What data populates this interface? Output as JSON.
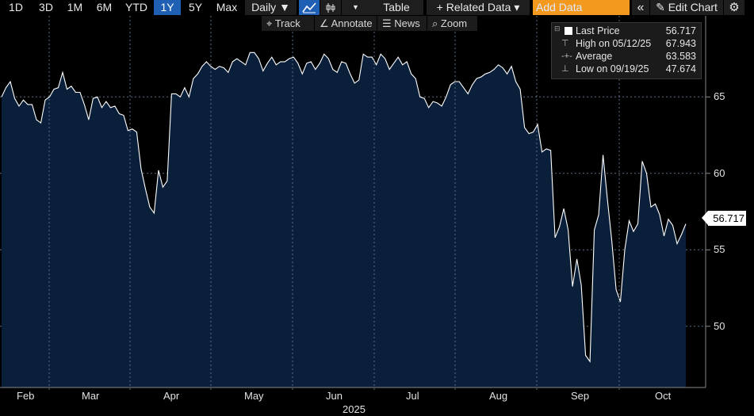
{
  "toolbar": {
    "ranges": [
      "1D",
      "3D",
      "1M",
      "6M",
      "YTD",
      "1Y",
      "5Y",
      "Max"
    ],
    "active_range": "1Y",
    "frequency": "Daily ▼",
    "table_label": "Table",
    "related_label": "+ Related Data ▾",
    "add_data_placeholder": "Add Data",
    "collapse_icon": "«",
    "edit_label": "Edit Chart",
    "settings_icon": "⚙"
  },
  "subbar": {
    "track": "Track",
    "annotate": "Annotate",
    "news": "News",
    "zoom": "Zoom"
  },
  "legend": {
    "last_label": "Last Price",
    "last_value": "56.717",
    "high_label": "High on 05/12/25",
    "high_value": "67.943",
    "avg_label": "Average",
    "avg_value": "63.583",
    "low_label": "Low on 09/19/25",
    "low_value": "47.674"
  },
  "price_tag": "56.717",
  "colors": {
    "area_fill": "#0a1f3a",
    "line": "#ffffff",
    "grid": "#5a6f8a",
    "accent": "#1f5fb4",
    "add_data_bg": "#f39a1e"
  },
  "chart_data": {
    "type": "area",
    "x_labels": [
      "Feb",
      "Mar",
      "Apr",
      "May",
      "Jun",
      "Jul",
      "Aug",
      "Sep",
      "Oct"
    ],
    "year_label": "2025",
    "y_ticks": [
      50,
      55,
      60,
      65
    ],
    "ylim": [
      46.0,
      70.3
    ],
    "grid": true,
    "series": [
      {
        "values": [
          65.0,
          65.6,
          66.0,
          64.9,
          64.4,
          64.8,
          64.5,
          64.5,
          63.5,
          63.3,
          64.8,
          65.0,
          65.5,
          65.6,
          66.6,
          65.5,
          65.7,
          65.3,
          65.3,
          64.5,
          63.5,
          64.9,
          65.0,
          64.3,
          64.7,
          64.3,
          64.4,
          63.9,
          63.8,
          62.8,
          62.9,
          62.7,
          60.3,
          59.0,
          57.8,
          57.4,
          60.2,
          59.1,
          59.5,
          65.2,
          65.2,
          65.0,
          65.6,
          65.0,
          66.2,
          66.5,
          67.0,
          67.3,
          67.0,
          66.8,
          67.0,
          66.9,
          66.6,
          67.3,
          67.5,
          67.3,
          67.1,
          67.9,
          67.9,
          67.5,
          66.7,
          67.2,
          67.6,
          67.1,
          67.3,
          67.3,
          67.5,
          67.6,
          67.2,
          66.5,
          67.2,
          67.3,
          66.8,
          67.2,
          67.8,
          67.5,
          66.8,
          66.6,
          67.3,
          67.2,
          66.5,
          65.9,
          66.1,
          67.8,
          67.6,
          67.6,
          67.1,
          67.8,
          67.5,
          66.8,
          67.2,
          67.6,
          67.1,
          67.3,
          66.5,
          66.2,
          65.0,
          64.9,
          64.3,
          64.7,
          64.6,
          64.4,
          65.0,
          65.8,
          66.0,
          66.0,
          65.6,
          65.2,
          65.8,
          66.2,
          66.3,
          66.5,
          66.6,
          66.8,
          67.1,
          66.9,
          66.5,
          67.0,
          66.0,
          65.5,
          63.0,
          62.6,
          62.7,
          63.2,
          61.4,
          61.6,
          61.5,
          55.8,
          56.5,
          57.7,
          56.3,
          52.6,
          54.4,
          52.7,
          48.1,
          47.7,
          56.3,
          57.3,
          61.2,
          58.3,
          55.6,
          52.4,
          51.6,
          55.0,
          56.9,
          56.2,
          56.7,
          60.8,
          60.0,
          57.8,
          58.0,
          57.3,
          55.9,
          57.0,
          56.6,
          55.4,
          56.0,
          56.7
        ]
      }
    ]
  }
}
